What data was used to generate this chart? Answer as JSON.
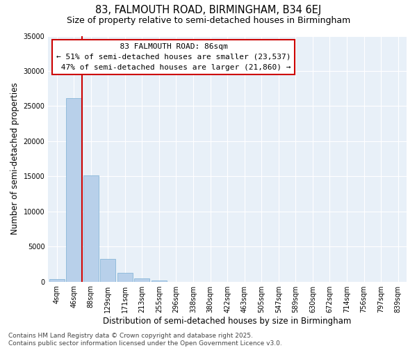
{
  "title": "83, FALMOUTH ROAD, BIRMINGHAM, B34 6EJ",
  "subtitle": "Size of property relative to semi-detached houses in Birmingham",
  "xlabel": "Distribution of semi-detached houses by size in Birmingham",
  "ylabel": "Number of semi-detached properties",
  "property_label": "83 FALMOUTH ROAD: 86sqm",
  "pct_smaller": 51,
  "pct_larger": 47,
  "n_smaller": 23537,
  "n_larger": 21860,
  "categories": [
    "4sqm",
    "46sqm",
    "88sqm",
    "129sqm",
    "171sqm",
    "213sqm",
    "255sqm",
    "296sqm",
    "338sqm",
    "380sqm",
    "422sqm",
    "463sqm",
    "505sqm",
    "547sqm",
    "589sqm",
    "630sqm",
    "672sqm",
    "714sqm",
    "756sqm",
    "797sqm",
    "839sqm"
  ],
  "values": [
    350,
    26100,
    15100,
    3200,
    1200,
    450,
    200,
    0,
    0,
    0,
    0,
    0,
    0,
    0,
    0,
    0,
    0,
    0,
    0,
    0,
    0
  ],
  "bar_color": "#b8d0ea",
  "bar_edge_color": "#7aafd4",
  "vline_color": "#cc0000",
  "vline_x": 2.0,
  "ylim": [
    0,
    35000
  ],
  "yticks": [
    0,
    5000,
    10000,
    15000,
    20000,
    25000,
    30000,
    35000
  ],
  "bg_color": "#e8f0f8",
  "grid_color": "#ffffff",
  "footer": "Contains HM Land Registry data © Crown copyright and database right 2025.\nContains public sector information licensed under the Open Government Licence v3.0.",
  "annotation_box_color": "#cc0000",
  "title_fontsize": 10.5,
  "subtitle_fontsize": 9,
  "axis_label_fontsize": 8.5,
  "tick_fontsize": 7,
  "annotation_fontsize": 8,
  "footer_fontsize": 6.5
}
